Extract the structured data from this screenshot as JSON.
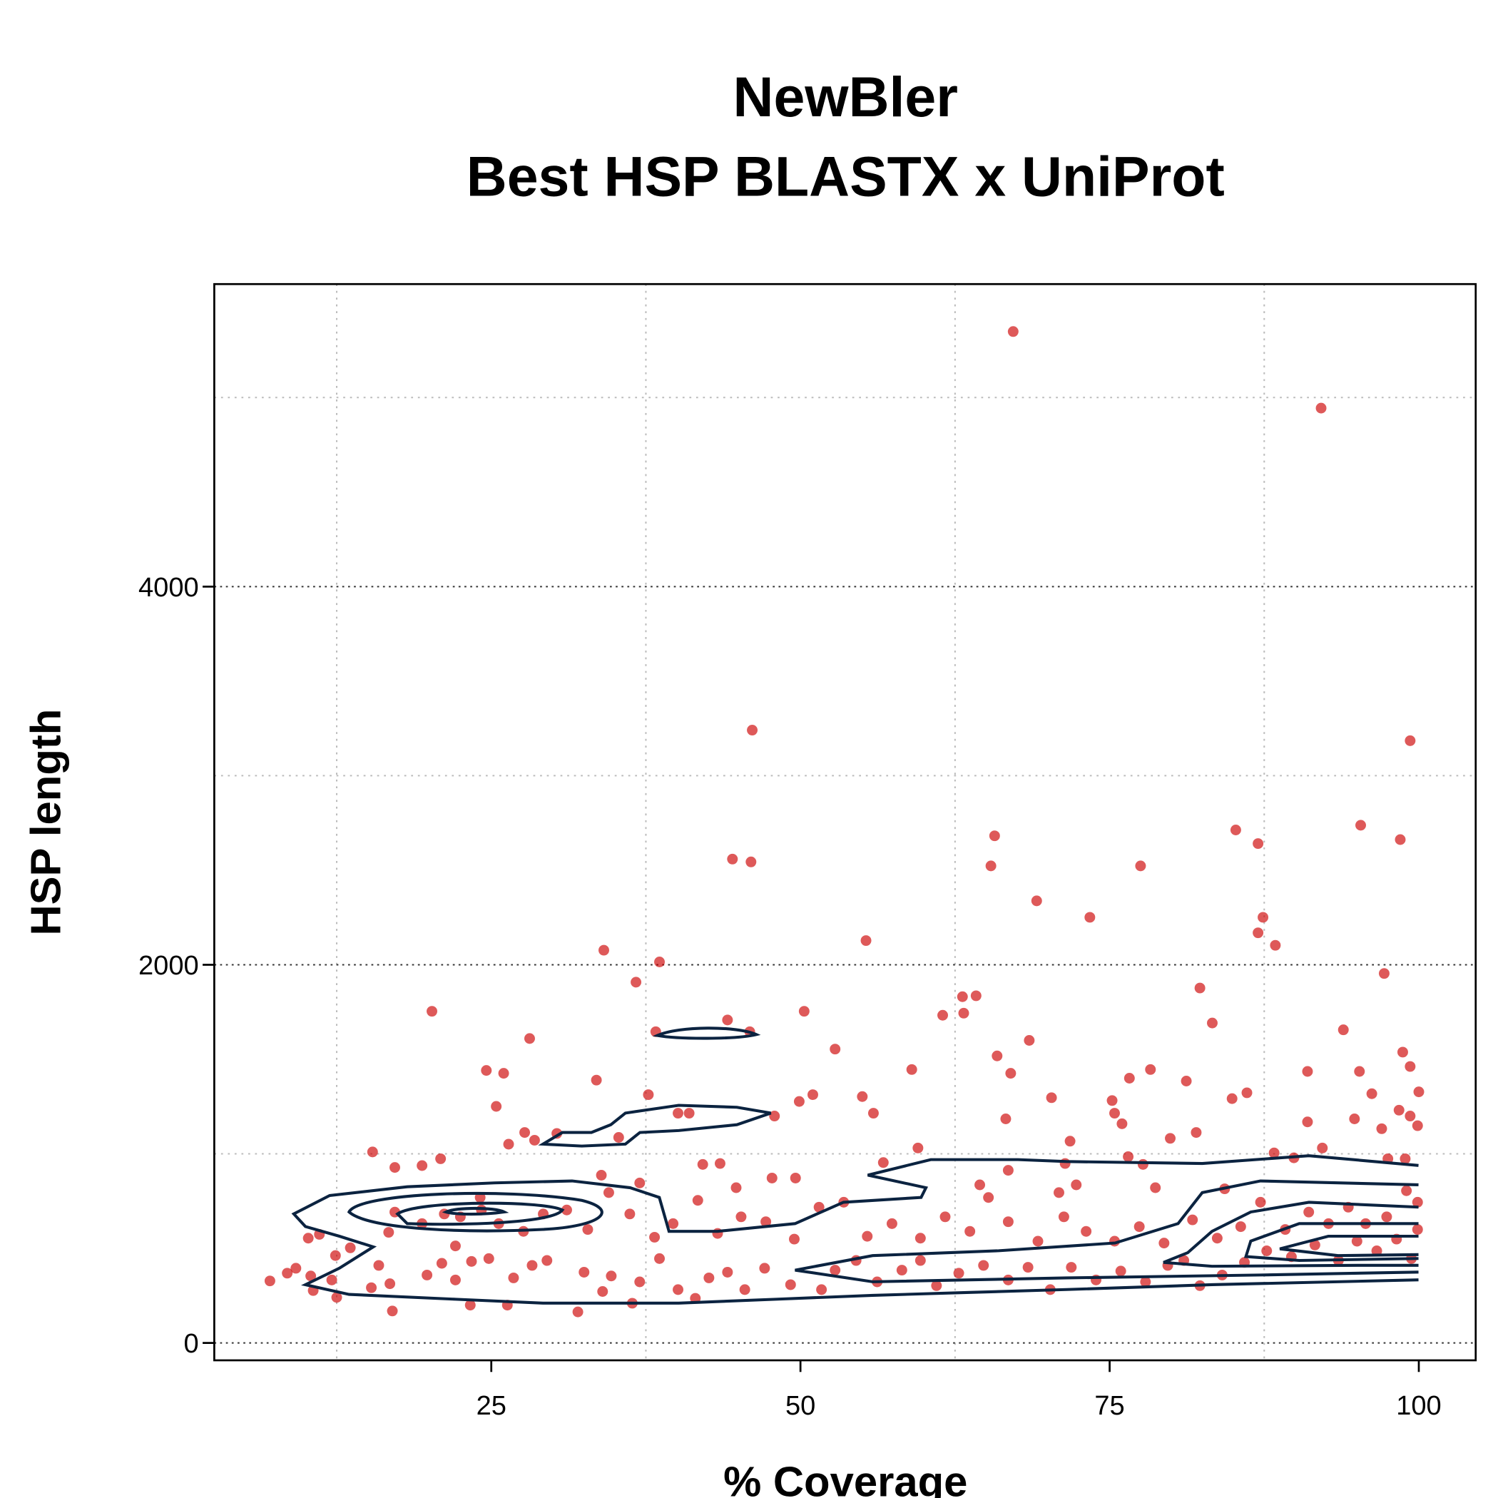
{
  "chart_data": {
    "type": "scatter",
    "title": [
      "NewBler",
      "Best HSP BLASTX x UniProt"
    ],
    "x_label": "% Coverage",
    "y_label": "HSP length",
    "xlim": [
      2.6,
      104.6
    ],
    "ylim": [
      -92,
      5600
    ],
    "xticks": [
      25,
      50,
      75,
      100
    ],
    "yticks": [
      0,
      2000,
      4000
    ],
    "x_minor_grid": [
      12.5,
      37.5,
      62.5,
      87.5
    ],
    "y_minor_grid": [
      1000,
      3000,
      5000
    ],
    "grid": true,
    "series": [
      {
        "color": "#cc0000",
        "x": [
          67.2,
          92.1,
          46.1,
          99.3,
          95.3,
          98.5,
          85.2,
          87.0,
          65.7,
          65.4,
          44.5,
          46.0,
          77.5,
          69.1,
          73.4,
          87.4,
          87.0,
          88.4,
          55.3,
          34.1,
          38.6,
          97.2,
          36.7,
          82.3,
          64.2,
          63.1,
          20.2,
          50.3,
          61.5,
          63.2,
          44.1,
          38.3,
          45.9,
          83.3,
          93.9,
          28.1,
          68.5,
          65.9,
          52.8,
          98.7,
          99.3,
          78.3,
          24.6,
          26.0,
          91.0,
          95.2,
          59.0,
          67.0,
          76.6,
          81.2,
          33.5,
          100,
          86.1,
          96.2,
          37.7,
          55.0,
          70.3,
          84.9,
          51.0,
          25.4,
          49.9,
          75.2,
          98.4,
          75.4,
          55.9,
          40.1,
          41.0,
          47.9,
          99.3,
          91.0,
          76.0,
          66.6,
          99.9,
          94.8,
          71.8,
          79.9,
          82.0,
          97.0,
          92.2,
          97.5,
          98.9,
          88.3,
          89.9,
          76.5,
          77.7,
          15.4,
          20.9,
          17.2,
          19.4,
          28.5,
          27.7,
          35.3,
          30.3,
          26.4,
          59.5,
          56.7,
          71.4,
          42.1,
          43.5,
          47.7,
          49.6,
          84.3,
          78.7,
          70.9,
          7.1,
          8.5,
          9.2,
          10.4,
          10.6,
          12.1,
          12.5,
          12.4,
          10.2,
          11.1,
          13.6,
          15.3,
          15.9,
          17.0,
          16.8,
          16.7,
          17.2,
          19.8,
          21.0,
          22.1,
          23.4,
          23.3,
          22.1,
          24.8,
          26.3,
          26.8,
          28.3,
          29.5,
          32.0,
          32.5,
          34.0,
          34.7,
          36.4,
          37.0,
          38.6,
          40.1,
          41.5,
          42.6,
          44.1,
          45.5,
          47.1,
          49.2,
          51.7,
          52.8,
          54.5,
          56.2,
          58.2,
          59.7,
          61.0,
          62.8,
          64.8,
          66.8,
          68.4,
          70.2,
          71.9,
          73.9,
          75.9,
          77.9,
          79.7,
          81.0,
          82.3,
          84.1,
          85.9,
          87.7,
          89.7,
          91.6,
          93.5,
          95.0,
          96.6,
          98.2,
          99.4,
          99.9,
          99.9,
          99.0,
          97.4,
          95.7,
          94.3,
          92.7,
          91.1,
          89.2,
          87.2,
          85.6,
          83.7,
          81.7,
          79.4,
          77.4,
          75.4,
          73.1,
          71.3,
          69.2,
          66.8,
          65.2,
          63.7,
          61.7,
          59.7,
          57.4,
          55.4,
          53.5,
          51.5,
          49.5,
          47.2,
          45.2,
          43.3,
          41.7,
          39.7,
          38.2,
          36.2,
          34.5,
          32.8,
          31.1,
          29.2,
          27.6,
          25.6,
          24.2,
          22.5,
          21.2,
          19.4,
          24.1,
          33.9,
          37.0,
          44.8,
          72.3,
          66.8,
          64.5
        ],
        "values": [
          5349,
          4944,
          3241,
          3185,
          2738,
          2662,
          2713,
          2641,
          2682,
          2523,
          2559,
          2544,
          2523,
          2338,
          2251,
          2251,
          2169,
          2103,
          2128,
          2077,
          2015,
          1954,
          1908,
          1877,
          1836,
          1831,
          1754,
          1754,
          1733,
          1744,
          1708,
          1646,
          1646,
          1692,
          1656,
          1610,
          1600,
          1518,
          1554,
          1538,
          1462,
          1446,
          1441,
          1426,
          1436,
          1436,
          1446,
          1426,
          1400,
          1385,
          1390,
          1328,
          1323,
          1318,
          1313,
          1303,
          1297,
          1292,
          1313,
          1251,
          1277,
          1282,
          1231,
          1215,
          1215,
          1215,
          1215,
          1200,
          1200,
          1169,
          1159,
          1185,
          1149,
          1185,
          1067,
          1082,
          1113,
          1133,
          1031,
          974,
          974,
          1005,
          979,
          985,
          944,
          1010,
          974,
          928,
          938,
          1072,
          1113,
          1087,
          1108,
          1051,
          1031,
          954,
          949,
          944,
          949,
          872,
          872,
          815,
          821,
          795,
          328,
          369,
          395,
          354,
          277,
          333,
          241,
          462,
          554,
          574,
          503,
          292,
          410,
          169,
          313,
          585,
          692,
          359,
          421,
          513,
          431,
          200,
          333,
          446,
          200,
          344,
          410,
          436,
          164,
          374,
          272,
          354,
          210,
          323,
          446,
          282,
          236,
          344,
          374,
          282,
          395,
          308,
          282,
          385,
          436,
          323,
          385,
          436,
          303,
          369,
          410,
          333,
          400,
          282,
          400,
          333,
          380,
          323,
          410,
          436,
          303,
          359,
          426,
          487,
          456,
          518,
          436,
          538,
          487,
          549,
          446,
          600,
          744,
          805,
          667,
          631,
          718,
          631,
          692,
          600,
          744,
          615,
          554,
          651,
          528,
          615,
          538,
          590,
          667,
          538,
          641,
          769,
          590,
          667,
          554,
          631,
          564,
          744,
          718,
          549,
          641,
          667,
          579,
          754,
          631,
          559,
          682,
          795,
          600,
          703,
          682,
          590,
          631,
          703,
          667,
          682,
          631,
          769,
          887,
          846,
          821,
          836,
          913,
          836
        ]
      }
    ]
  }
}
